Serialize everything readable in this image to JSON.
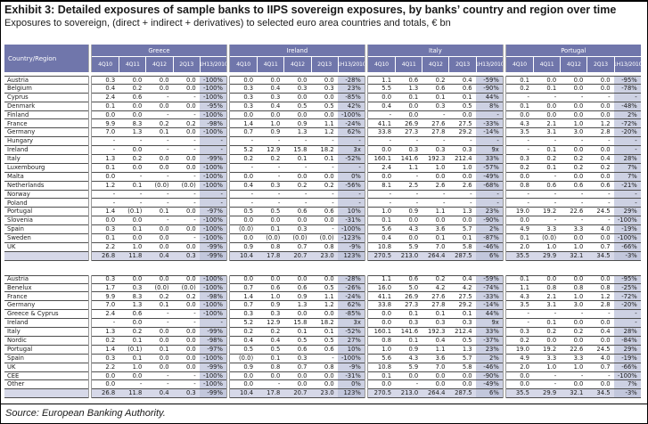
{
  "title": "Exhibit 3: Detailed exposures of sample banks to IIPS sovereign exposures, by banks’ country and region over time",
  "subtitle": "Exposures to sovereign, (direct + indirect + derivatives) to selected euro area countries and totals, € bn",
  "source": "Source: European Banking Authority.",
  "colors": {
    "header_bg": "#7076ab",
    "shade": "#cdd1e3",
    "total_bg": "#d6d8e8",
    "total_pct_bg": "#c2c7dc"
  },
  "table": {
    "corner_label": "Country/Region",
    "groups": [
      "Greece",
      "Ireland",
      "Italy",
      "Portugal"
    ],
    "periods": [
      "4Q10",
      "4Q11",
      "4Q12",
      "2Q13",
      "1H13/2010"
    ],
    "country_rows": [
      {
        "label": "Austria",
        "values": [
          [
            "0.3",
            "0.0",
            "0.0",
            "0.0",
            "-100%"
          ],
          [
            "0.0",
            "0.0",
            "0.0",
            "0.0",
            "-28%"
          ],
          [
            "1.1",
            "0.6",
            "0.2",
            "0.4",
            "-59%"
          ],
          [
            "0.1",
            "0.0",
            "0.0",
            "0.0",
            "-95%"
          ]
        ]
      },
      {
        "label": "Belgium",
        "values": [
          [
            "0.4",
            "0.2",
            "0.0",
            "0.0",
            "-100%"
          ],
          [
            "0.3",
            "0.4",
            "0.3",
            "0.3",
            "23%"
          ],
          [
            "5.5",
            "1.3",
            "0.6",
            "0.6",
            "-90%"
          ],
          [
            "0.2",
            "0.1",
            "0.0",
            "0.0",
            "-78%"
          ]
        ]
      },
      {
        "label": "Cyprus",
        "values": [
          [
            "2.4",
            "0.6",
            "-",
            "-",
            "-100%"
          ],
          [
            "0.3",
            "0.3",
            "0.0",
            "0.0",
            "-85%"
          ],
          [
            "0.0",
            "0.1",
            "0.1",
            "0.1",
            "44%"
          ],
          [
            "-",
            "-",
            "-",
            "-",
            "-"
          ]
        ]
      },
      {
        "label": "Denmark",
        "values": [
          [
            "0.1",
            "0.0",
            "0.0",
            "0.0",
            "-95%"
          ],
          [
            "0.3",
            "0.4",
            "0.5",
            "0.5",
            "42%"
          ],
          [
            "0.4",
            "0.0",
            "0.3",
            "0.5",
            "8%"
          ],
          [
            "0.1",
            "0.0",
            "0.0",
            "0.0",
            "-48%"
          ]
        ]
      },
      {
        "label": "Finland",
        "values": [
          [
            "0.0",
            "0.0",
            "-",
            "-",
            "-100%"
          ],
          [
            "0.0",
            "0.0",
            "0.0",
            "0.0",
            "-100%"
          ],
          [
            "-",
            "0.0",
            "-",
            "0.0",
            "-"
          ],
          [
            "0.0",
            "0.0",
            "0.0",
            "0.0",
            "2%"
          ]
        ]
      },
      {
        "label": "France",
        "values": [
          [
            "9.9",
            "8.3",
            "0.2",
            "0.2",
            "-98%"
          ],
          [
            "1.4",
            "1.0",
            "0.9",
            "1.1",
            "-24%"
          ],
          [
            "41.1",
            "26.9",
            "27.6",
            "27.5",
            "-33%"
          ],
          [
            "4.3",
            "2.1",
            "1.0",
            "1.2",
            "-72%"
          ]
        ]
      },
      {
        "label": "Germany",
        "values": [
          [
            "7.0",
            "1.3",
            "0.1",
            "0.0",
            "-100%"
          ],
          [
            "0.7",
            "0.9",
            "1.3",
            "1.2",
            "62%"
          ],
          [
            "33.8",
            "27.3",
            "27.8",
            "29.2",
            "-14%"
          ],
          [
            "3.5",
            "3.1",
            "3.0",
            "2.8",
            "-20%"
          ]
        ]
      },
      {
        "label": "Hungary",
        "values": [
          [
            "-",
            "-",
            "-",
            "-",
            "-"
          ],
          [
            "-",
            "-",
            "-",
            "-",
            "-"
          ],
          [
            "-",
            "-",
            "-",
            "-",
            "-"
          ],
          [
            "-",
            "-",
            "-",
            "-",
            "-"
          ]
        ]
      },
      {
        "label": "Ireland",
        "values": [
          [
            "-",
            "0.0",
            "-",
            "-",
            "-"
          ],
          [
            "5.2",
            "12.9",
            "15.8",
            "18.2",
            "3x"
          ],
          [
            "0.0",
            "0.3",
            "0.3",
            "0.3",
            "9x"
          ],
          [
            "-",
            "0.1",
            "0.0",
            "0.0",
            "-"
          ]
        ]
      },
      {
        "label": "Italy",
        "values": [
          [
            "1.3",
            "0.2",
            "0.0",
            "0.0",
            "-99%"
          ],
          [
            "0.2",
            "0.2",
            "0.1",
            "0.1",
            "-52%"
          ],
          [
            "160.1",
            "141.6",
            "192.3",
            "212.4",
            "33%"
          ],
          [
            "0.3",
            "0.2",
            "0.2",
            "0.4",
            "28%"
          ]
        ]
      },
      {
        "label": "Luxembourg",
        "values": [
          [
            "0.1",
            "0.0",
            "0.0",
            "0.0",
            "-100%"
          ],
          [
            "-",
            "-",
            "-",
            "-",
            "-"
          ],
          [
            "2.4",
            "1.1",
            "1.0",
            "1.0",
            "-57%"
          ],
          [
            "0.2",
            "0.1",
            "0.2",
            "0.2",
            "7%"
          ]
        ]
      },
      {
        "label": "Malta",
        "values": [
          [
            "0.0",
            "-",
            "-",
            "-",
            "-100%"
          ],
          [
            "0.0",
            "-",
            "0.0",
            "0.0",
            "0%"
          ],
          [
            "0.0",
            "-",
            "0.0",
            "0.0",
            "-49%"
          ],
          [
            "0.0",
            "-",
            "0.0",
            "0.0",
            "7%"
          ]
        ]
      },
      {
        "label": "Netherlands",
        "values": [
          [
            "1.2",
            "0.1",
            "(0.0)",
            "(0.0)",
            "-100%"
          ],
          [
            "0.4",
            "0.3",
            "0.2",
            "0.2",
            "-56%"
          ],
          [
            "8.1",
            "2.5",
            "2.6",
            "2.6",
            "-68%"
          ],
          [
            "0.8",
            "0.6",
            "0.6",
            "0.6",
            "-21%"
          ]
        ]
      },
      {
        "label": "Norway",
        "values": [
          [
            "-",
            "-",
            "-",
            "-",
            "-"
          ],
          [
            "-",
            "-",
            "-",
            "-",
            "-"
          ],
          [
            "-",
            "-",
            "-",
            "-",
            "-"
          ],
          [
            "-",
            "-",
            "-",
            "-",
            "-"
          ]
        ]
      },
      {
        "label": "Poland",
        "values": [
          [
            "-",
            "-",
            "-",
            "-",
            "-"
          ],
          [
            "-",
            "-",
            "-",
            "-",
            "-"
          ],
          [
            "-",
            "-",
            "-",
            "-",
            "-"
          ],
          [
            "-",
            "-",
            "-",
            "-",
            "-"
          ]
        ]
      },
      {
        "label": "Portugal",
        "values": [
          [
            "1.4",
            "(0.1)",
            "0.1",
            "0.0",
            "-97%"
          ],
          [
            "0.5",
            "0.5",
            "0.6",
            "0.6",
            "10%"
          ],
          [
            "1.0",
            "0.9",
            "1.1",
            "1.3",
            "23%"
          ],
          [
            "19.0",
            "19.2",
            "22.6",
            "24.5",
            "29%"
          ]
        ]
      },
      {
        "label": "Slovenia",
        "values": [
          [
            "0.0",
            "0.0",
            "-",
            "-",
            "-100%"
          ],
          [
            "0.0",
            "0.0",
            "0.0",
            "0.0",
            "-31%"
          ],
          [
            "0.1",
            "0.0",
            "0.0",
            "0.0",
            "-90%"
          ],
          [
            "0.0",
            "-",
            "-",
            "-",
            "-100%"
          ]
        ]
      },
      {
        "label": "Spain",
        "values": [
          [
            "0.3",
            "0.1",
            "0.0",
            "0.0",
            "-100%"
          ],
          [
            "(0.0)",
            "0.1",
            "0.3",
            "-",
            "-100%"
          ],
          [
            "5.6",
            "4.3",
            "3.6",
            "5.7",
            "2%"
          ],
          [
            "4.9",
            "3.3",
            "3.3",
            "4.0",
            "-19%"
          ]
        ]
      },
      {
        "label": "Sweden",
        "values": [
          [
            "0.1",
            "0.0",
            "0.0",
            "-",
            "-100%"
          ],
          [
            "0.0",
            "(0.0)",
            "(0.0)",
            "(0.0)",
            "-123%"
          ],
          [
            "0.4",
            "0.0",
            "0.1",
            "0.1",
            "-87%"
          ],
          [
            "0.1",
            "(0.0)",
            "0.0",
            "0.0",
            "-100%"
          ]
        ]
      },
      {
        "label": "UK",
        "values": [
          [
            "2.2",
            "1.0",
            "0.0",
            "0.0",
            "-99%"
          ],
          [
            "0.9",
            "0.8",
            "0.7",
            "0.8",
            "-9%"
          ],
          [
            "10.8",
            "5.9",
            "7.0",
            "5.8",
            "-46%"
          ],
          [
            "2.0",
            "1.0",
            "1.0",
            "0.7",
            "-66%"
          ]
        ]
      },
      {
        "label": "",
        "total": true,
        "values": [
          [
            "26.8",
            "11.8",
            "0.4",
            "0.3",
            "-99%"
          ],
          [
            "10.4",
            "17.8",
            "20.7",
            "23.0",
            "123%"
          ],
          [
            "270.5",
            "213.0",
            "264.4",
            "287.5",
            "6%"
          ],
          [
            "35.5",
            "29.9",
            "32.1",
            "34.5",
            "-3%"
          ]
        ]
      }
    ],
    "region_rows": [
      {
        "label": "Austria",
        "values": [
          [
            "0.3",
            "0.0",
            "0.0",
            "0.0",
            "-100%"
          ],
          [
            "0.0",
            "0.0",
            "0.0",
            "0.0",
            "-28%"
          ],
          [
            "1.1",
            "0.6",
            "0.2",
            "0.4",
            "-59%"
          ],
          [
            "0.1",
            "0.0",
            "0.0",
            "0.0",
            "-95%"
          ]
        ]
      },
      {
        "label": "Benelux",
        "values": [
          [
            "1.7",
            "0.3",
            "(0.0)",
            "(0.0)",
            "-100%"
          ],
          [
            "0.7",
            "0.6",
            "0.6",
            "0.5",
            "-26%"
          ],
          [
            "16.0",
            "5.0",
            "4.2",
            "4.2",
            "-74%"
          ],
          [
            "1.1",
            "0.8",
            "0.8",
            "0.8",
            "-25%"
          ]
        ]
      },
      {
        "label": "France",
        "values": [
          [
            "9.9",
            "8.3",
            "0.2",
            "0.2",
            "-98%"
          ],
          [
            "1.4",
            "1.0",
            "0.9",
            "1.1",
            "-24%"
          ],
          [
            "41.1",
            "26.9",
            "27.6",
            "27.5",
            "-33%"
          ],
          [
            "4.3",
            "2.1",
            "1.0",
            "1.2",
            "-72%"
          ]
        ]
      },
      {
        "label": "Germany",
        "values": [
          [
            "7.0",
            "1.3",
            "0.1",
            "0.0",
            "-100%"
          ],
          [
            "0.7",
            "0.9",
            "1.3",
            "1.2",
            "62%"
          ],
          [
            "33.8",
            "27.3",
            "27.8",
            "29.2",
            "-14%"
          ],
          [
            "3.5",
            "3.1",
            "3.0",
            "2.8",
            "-20%"
          ]
        ]
      },
      {
        "label": "Greece & Cyprus",
        "values": [
          [
            "2.4",
            "0.6",
            "-",
            "-",
            "-100%"
          ],
          [
            "0.3",
            "0.3",
            "0.0",
            "0.0",
            "-85%"
          ],
          [
            "0.0",
            "0.1",
            "0.1",
            "0.1",
            "44%"
          ],
          [
            "-",
            "-",
            "-",
            "-",
            "-"
          ]
        ]
      },
      {
        "label": "Ireland",
        "values": [
          [
            "-",
            "0.0",
            "-",
            "-",
            "-"
          ],
          [
            "5.2",
            "12.9",
            "15.8",
            "18.2",
            "3x"
          ],
          [
            "0.0",
            "0.3",
            "0.3",
            "0.3",
            "9x"
          ],
          [
            "-",
            "0.1",
            "0.0",
            "0.0",
            "-"
          ]
        ]
      },
      {
        "label": "Italy",
        "values": [
          [
            "1.3",
            "0.2",
            "0.0",
            "0.0",
            "-99%"
          ],
          [
            "0.2",
            "0.2",
            "0.1",
            "0.1",
            "-52%"
          ],
          [
            "160.1",
            "141.6",
            "192.3",
            "212.4",
            "33%"
          ],
          [
            "0.3",
            "0.2",
            "0.2",
            "0.4",
            "28%"
          ]
        ]
      },
      {
        "label": "Nordic",
        "values": [
          [
            "0.2",
            "0.1",
            "0.0",
            "0.0",
            "-98%"
          ],
          [
            "0.4",
            "0.4",
            "0.5",
            "0.5",
            "27%"
          ],
          [
            "0.8",
            "0.1",
            "0.4",
            "0.5",
            "-37%"
          ],
          [
            "0.2",
            "0.0",
            "0.0",
            "0.0",
            "-84%"
          ]
        ]
      },
      {
        "label": "Portugal",
        "values": [
          [
            "1.4",
            "(0.1)",
            "0.1",
            "0.0",
            "-97%"
          ],
          [
            "0.5",
            "0.5",
            "0.6",
            "0.6",
            "10%"
          ],
          [
            "1.0",
            "0.9",
            "1.1",
            "1.3",
            "23%"
          ],
          [
            "19.0",
            "19.2",
            "22.6",
            "24.5",
            "29%"
          ]
        ]
      },
      {
        "label": "Spain",
        "values": [
          [
            "0.3",
            "0.1",
            "0.0",
            "0.0",
            "-100%"
          ],
          [
            "(0.0)",
            "0.1",
            "0.3",
            "-",
            "-100%"
          ],
          [
            "5.6",
            "4.3",
            "3.6",
            "5.7",
            "2%"
          ],
          [
            "4.9",
            "3.3",
            "3.3",
            "4.0",
            "-19%"
          ]
        ]
      },
      {
        "label": "UK",
        "values": [
          [
            "2.2",
            "1.0",
            "0.0",
            "0.0",
            "-99%"
          ],
          [
            "0.9",
            "0.8",
            "0.7",
            "0.8",
            "-9%"
          ],
          [
            "10.8",
            "5.9",
            "7.0",
            "5.8",
            "-46%"
          ],
          [
            "2.0",
            "1.0",
            "1.0",
            "0.7",
            "-66%"
          ]
        ]
      },
      {
        "label": "CEE",
        "values": [
          [
            "0.0",
            "0.0",
            "-",
            "-",
            "-100%"
          ],
          [
            "0.0",
            "0.0",
            "0.0",
            "0.0",
            "-31%"
          ],
          [
            "0.1",
            "0.0",
            "0.0",
            "0.0",
            "-90%"
          ],
          [
            "0.0",
            "-",
            "-",
            "-",
            "-100%"
          ]
        ]
      },
      {
        "label": "Other",
        "values": [
          [
            "0.0",
            "-",
            "-",
            "-",
            "-100%"
          ],
          [
            "0.0",
            "-",
            "0.0",
            "0.0",
            "0%"
          ],
          [
            "0.0",
            "-",
            "0.0",
            "0.0",
            "-49%"
          ],
          [
            "0.0",
            "-",
            "0.0",
            "0.0",
            "7%"
          ]
        ]
      },
      {
        "label": "",
        "total": true,
        "values": [
          [
            "26.8",
            "11.8",
            "0.4",
            "0.3",
            "-99%"
          ],
          [
            "10.4",
            "17.8",
            "20.7",
            "23.0",
            "123%"
          ],
          [
            "270.5",
            "213.0",
            "264.4",
            "287.5",
            "6%"
          ],
          [
            "35.5",
            "29.9",
            "32.1",
            "34.5",
            "-3%"
          ]
        ]
      }
    ]
  }
}
